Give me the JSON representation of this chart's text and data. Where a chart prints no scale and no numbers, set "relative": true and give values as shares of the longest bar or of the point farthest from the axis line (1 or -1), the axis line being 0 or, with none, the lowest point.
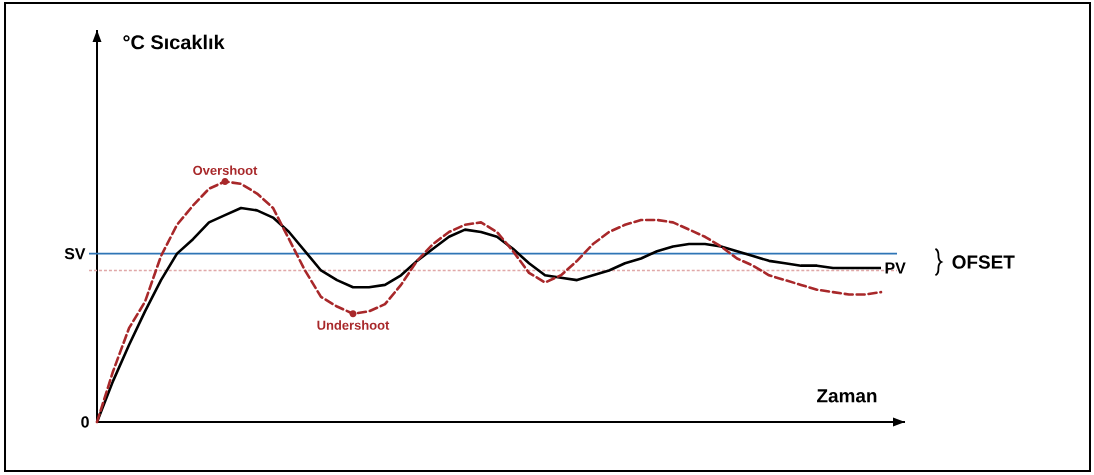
{
  "chart_data": {
    "type": "line",
    "relative": true,
    "xlabel": "Zaman",
    "tick_labels": false,
    "marker": "none",
    "categories": [
      null,
      null,
      null,
      null,
      null,
      null,
      null,
      null,
      null,
      null,
      null,
      null,
      null,
      null,
      null,
      null,
      null,
      null,
      null,
      null,
      null,
      null,
      null,
      null,
      null,
      null,
      null,
      null,
      null,
      null,
      null,
      null,
      null,
      null,
      null,
      null,
      null,
      null,
      null,
      null,
      null,
      null,
      null,
      null,
      null,
      null,
      null,
      null,
      null,
      null
    ],
    "series": [
      {
        "name": "PV",
        "color": "#000000",
        "line_style": "solid",
        "values": [
          0,
          0.17,
          0.32,
          0.46,
          0.59,
          0.7,
          0.76,
          0.83,
          0.86,
          0.89,
          0.88,
          0.85,
          0.79,
          0.71,
          0.63,
          0.59,
          0.56,
          0.56,
          0.57,
          0.61,
          0.67,
          0.72,
          0.77,
          0.8,
          0.79,
          0.77,
          0.72,
          0.66,
          0.61,
          0.6,
          0.59,
          0.61,
          0.63,
          0.66,
          0.68,
          0.71,
          0.73,
          0.74,
          0.74,
          0.73,
          0.71,
          0.69,
          0.67,
          0.66,
          0.65,
          0.65,
          0.64,
          0.64,
          0.64,
          0.64
        ]
      },
      {
        "color": "#a8282a",
        "line_style": "dashed",
        "values": [
          0,
          0.21,
          0.39,
          0.5,
          0.69,
          0.82,
          0.9,
          0.97,
          1.0,
          0.99,
          0.95,
          0.89,
          0.76,
          0.63,
          0.52,
          0.48,
          0.45,
          0.46,
          0.49,
          0.57,
          0.67,
          0.74,
          0.79,
          0.82,
          0.83,
          0.79,
          0.71,
          0.62,
          0.58,
          0.61,
          0.67,
          0.74,
          0.79,
          0.82,
          0.84,
          0.84,
          0.83,
          0.8,
          0.77,
          0.73,
          0.68,
          0.65,
          0.61,
          0.59,
          0.57,
          0.55,
          0.54,
          0.53,
          0.53,
          0.54
        ]
      }
    ],
    "ref_lines": [
      {
        "axis": "y",
        "value": 0.7,
        "label": "SV",
        "color": "#2e75b6",
        "line_style": "solid"
      },
      {
        "axis": "y",
        "value": 0.63,
        "color": "#e0a8a8",
        "line_style": "dotted"
      }
    ],
    "annotations": [
      "Overshoot",
      "Undershoot",
      "0",
      "OFSET",
      "°C Sıcaklık"
    ]
  }
}
